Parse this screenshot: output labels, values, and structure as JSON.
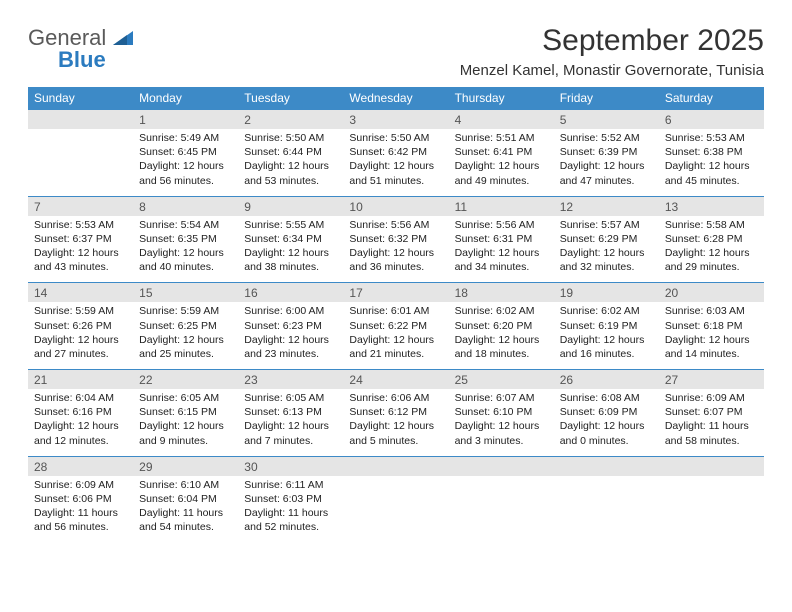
{
  "brand": {
    "part1": "General",
    "part2": "Blue"
  },
  "title": "September 2025",
  "location": "Menzel Kamel, Monastir Governorate, Tunisia",
  "colors": {
    "header_band": "#3d8ac7",
    "daynum_band": "#e5e5e5",
    "rule": "#3d8ac7",
    "logo_gray": "#5a5a5a",
    "logo_blue": "#2b7bbf",
    "text": "#222222",
    "background": "#ffffff"
  },
  "fonts": {
    "title_size_pt": 22,
    "location_size_pt": 11,
    "weekday_size_pt": 9,
    "daynum_size_pt": 9,
    "body_size_pt": 8
  },
  "weekdays": [
    "Sunday",
    "Monday",
    "Tuesday",
    "Wednesday",
    "Thursday",
    "Friday",
    "Saturday"
  ],
  "weeks": [
    [
      null,
      {
        "n": "1",
        "sunrise": "Sunrise: 5:49 AM",
        "sunset": "Sunset: 6:45 PM",
        "daylight": "Daylight: 12 hours and 56 minutes."
      },
      {
        "n": "2",
        "sunrise": "Sunrise: 5:50 AM",
        "sunset": "Sunset: 6:44 PM",
        "daylight": "Daylight: 12 hours and 53 minutes."
      },
      {
        "n": "3",
        "sunrise": "Sunrise: 5:50 AM",
        "sunset": "Sunset: 6:42 PM",
        "daylight": "Daylight: 12 hours and 51 minutes."
      },
      {
        "n": "4",
        "sunrise": "Sunrise: 5:51 AM",
        "sunset": "Sunset: 6:41 PM",
        "daylight": "Daylight: 12 hours and 49 minutes."
      },
      {
        "n": "5",
        "sunrise": "Sunrise: 5:52 AM",
        "sunset": "Sunset: 6:39 PM",
        "daylight": "Daylight: 12 hours and 47 minutes."
      },
      {
        "n": "6",
        "sunrise": "Sunrise: 5:53 AM",
        "sunset": "Sunset: 6:38 PM",
        "daylight": "Daylight: 12 hours and 45 minutes."
      }
    ],
    [
      {
        "n": "7",
        "sunrise": "Sunrise: 5:53 AM",
        "sunset": "Sunset: 6:37 PM",
        "daylight": "Daylight: 12 hours and 43 minutes."
      },
      {
        "n": "8",
        "sunrise": "Sunrise: 5:54 AM",
        "sunset": "Sunset: 6:35 PM",
        "daylight": "Daylight: 12 hours and 40 minutes."
      },
      {
        "n": "9",
        "sunrise": "Sunrise: 5:55 AM",
        "sunset": "Sunset: 6:34 PM",
        "daylight": "Daylight: 12 hours and 38 minutes."
      },
      {
        "n": "10",
        "sunrise": "Sunrise: 5:56 AM",
        "sunset": "Sunset: 6:32 PM",
        "daylight": "Daylight: 12 hours and 36 minutes."
      },
      {
        "n": "11",
        "sunrise": "Sunrise: 5:56 AM",
        "sunset": "Sunset: 6:31 PM",
        "daylight": "Daylight: 12 hours and 34 minutes."
      },
      {
        "n": "12",
        "sunrise": "Sunrise: 5:57 AM",
        "sunset": "Sunset: 6:29 PM",
        "daylight": "Daylight: 12 hours and 32 minutes."
      },
      {
        "n": "13",
        "sunrise": "Sunrise: 5:58 AM",
        "sunset": "Sunset: 6:28 PM",
        "daylight": "Daylight: 12 hours and 29 minutes."
      }
    ],
    [
      {
        "n": "14",
        "sunrise": "Sunrise: 5:59 AM",
        "sunset": "Sunset: 6:26 PM",
        "daylight": "Daylight: 12 hours and 27 minutes."
      },
      {
        "n": "15",
        "sunrise": "Sunrise: 5:59 AM",
        "sunset": "Sunset: 6:25 PM",
        "daylight": "Daylight: 12 hours and 25 minutes."
      },
      {
        "n": "16",
        "sunrise": "Sunrise: 6:00 AM",
        "sunset": "Sunset: 6:23 PM",
        "daylight": "Daylight: 12 hours and 23 minutes."
      },
      {
        "n": "17",
        "sunrise": "Sunrise: 6:01 AM",
        "sunset": "Sunset: 6:22 PM",
        "daylight": "Daylight: 12 hours and 21 minutes."
      },
      {
        "n": "18",
        "sunrise": "Sunrise: 6:02 AM",
        "sunset": "Sunset: 6:20 PM",
        "daylight": "Daylight: 12 hours and 18 minutes."
      },
      {
        "n": "19",
        "sunrise": "Sunrise: 6:02 AM",
        "sunset": "Sunset: 6:19 PM",
        "daylight": "Daylight: 12 hours and 16 minutes."
      },
      {
        "n": "20",
        "sunrise": "Sunrise: 6:03 AM",
        "sunset": "Sunset: 6:18 PM",
        "daylight": "Daylight: 12 hours and 14 minutes."
      }
    ],
    [
      {
        "n": "21",
        "sunrise": "Sunrise: 6:04 AM",
        "sunset": "Sunset: 6:16 PM",
        "daylight": "Daylight: 12 hours and 12 minutes."
      },
      {
        "n": "22",
        "sunrise": "Sunrise: 6:05 AM",
        "sunset": "Sunset: 6:15 PM",
        "daylight": "Daylight: 12 hours and 9 minutes."
      },
      {
        "n": "23",
        "sunrise": "Sunrise: 6:05 AM",
        "sunset": "Sunset: 6:13 PM",
        "daylight": "Daylight: 12 hours and 7 minutes."
      },
      {
        "n": "24",
        "sunrise": "Sunrise: 6:06 AM",
        "sunset": "Sunset: 6:12 PM",
        "daylight": "Daylight: 12 hours and 5 minutes."
      },
      {
        "n": "25",
        "sunrise": "Sunrise: 6:07 AM",
        "sunset": "Sunset: 6:10 PM",
        "daylight": "Daylight: 12 hours and 3 minutes."
      },
      {
        "n": "26",
        "sunrise": "Sunrise: 6:08 AM",
        "sunset": "Sunset: 6:09 PM",
        "daylight": "Daylight: 12 hours and 0 minutes."
      },
      {
        "n": "27",
        "sunrise": "Sunrise: 6:09 AM",
        "sunset": "Sunset: 6:07 PM",
        "daylight": "Daylight: 11 hours and 58 minutes."
      }
    ],
    [
      {
        "n": "28",
        "sunrise": "Sunrise: 6:09 AM",
        "sunset": "Sunset: 6:06 PM",
        "daylight": "Daylight: 11 hours and 56 minutes."
      },
      {
        "n": "29",
        "sunrise": "Sunrise: 6:10 AM",
        "sunset": "Sunset: 6:04 PM",
        "daylight": "Daylight: 11 hours and 54 minutes."
      },
      {
        "n": "30",
        "sunrise": "Sunrise: 6:11 AM",
        "sunset": "Sunset: 6:03 PM",
        "daylight": "Daylight: 11 hours and 52 minutes."
      },
      null,
      null,
      null,
      null
    ]
  ]
}
